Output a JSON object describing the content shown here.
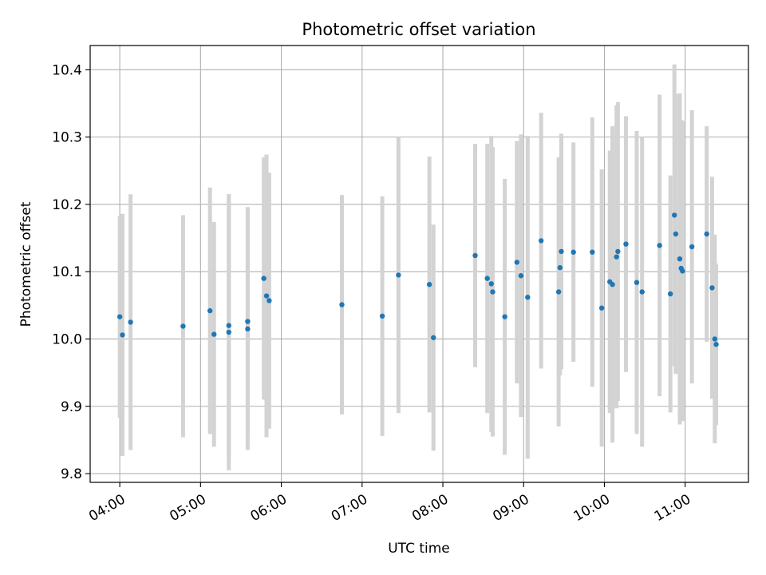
{
  "chart_data": {
    "type": "scatter",
    "title": "Photometric offset variation",
    "xlabel": "UTC time",
    "ylabel": "Photometric offset",
    "x_tick_labels": [
      "04:00",
      "05:00",
      "06:00",
      "07:00",
      "08:00",
      "09:00",
      "10:00",
      "11:00"
    ],
    "y_tick_labels": [
      "9.8",
      "9.9",
      "10.0",
      "10.1",
      "10.2",
      "10.3",
      "10.4"
    ],
    "xlim": [
      "03:38",
      "11:47"
    ],
    "ylim": [
      9.787,
      10.436
    ],
    "grid": true,
    "colors": {
      "points": "#1f77b4",
      "errorbars": "#d3d3d3",
      "grid": "#b0b0b0"
    },
    "x": [
      "04:00",
      "04:02",
      "04:08",
      "04:47",
      "05:07",
      "05:10",
      "05:21",
      "05:21",
      "05:35",
      "05:35",
      "05:47",
      "05:49",
      "05:51",
      "06:45",
      "07:15",
      "07:27",
      "07:50",
      "07:53",
      "08:24",
      "08:33",
      "08:36",
      "08:37",
      "08:46",
      "08:55",
      "08:58",
      "09:03",
      "09:13",
      "09:26",
      "09:27",
      "09:28",
      "09:37",
      "09:51",
      "09:58",
      "10:04",
      "10:06",
      "10:09",
      "10:10",
      "10:16",
      "10:24",
      "10:28",
      "10:41",
      "10:49",
      "10:52",
      "10:53",
      "10:56",
      "10:57",
      "10:58",
      "11:05",
      "11:16",
      "11:20",
      "11:22",
      "11:23"
    ],
    "y": [
      10.033,
      10.006,
      10.025,
      10.019,
      10.042,
      10.007,
      10.01,
      10.02,
      10.015,
      10.026,
      10.09,
      10.064,
      10.057,
      10.051,
      10.034,
      10.095,
      10.081,
      10.002,
      10.124,
      10.09,
      10.082,
      10.07,
      10.033,
      10.114,
      10.094,
      10.062,
      10.146,
      10.07,
      10.106,
      10.13,
      10.129,
      10.129,
      10.046,
      10.085,
      10.081,
      10.122,
      10.13,
      10.141,
      10.084,
      10.07,
      10.139,
      10.067,
      10.184,
      10.156,
      10.119,
      10.105,
      10.101,
      10.137,
      10.156,
      10.076,
      10.0,
      9.992
    ],
    "yerr": [
      0.15,
      0.18,
      0.19,
      0.165,
      0.183,
      0.167,
      0.205,
      0.195,
      0.18,
      0.17,
      0.18,
      0.21,
      0.19,
      0.163,
      0.178,
      0.205,
      0.19,
      0.168,
      0.166,
      0.2,
      0.22,
      0.215,
      0.205,
      0.18,
      0.21,
      0.24,
      0.19,
      0.2,
      0.16,
      0.175,
      0.163,
      0.2,
      0.206,
      0.195,
      0.235,
      0.225,
      0.222,
      0.19,
      0.225,
      0.23,
      0.224,
      0.176,
      0.224,
      0.208,
      0.246,
      0.22,
      0.223,
      0.203,
      0.16,
      0.165,
      0.155,
      0.12
    ]
  }
}
